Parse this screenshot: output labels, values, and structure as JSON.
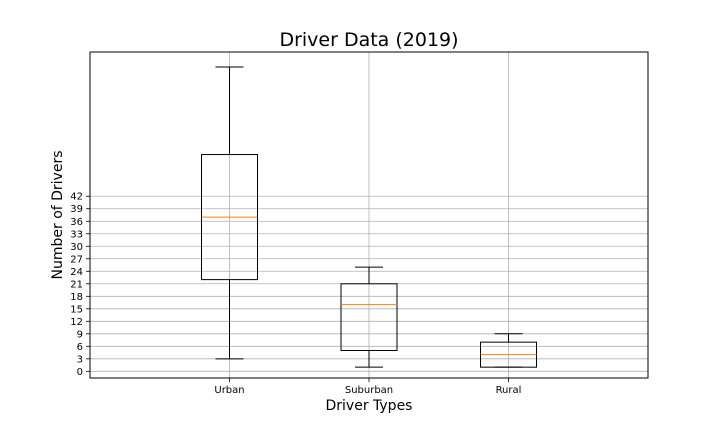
{
  "chart_data": {
    "type": "box",
    "title": "Driver Data (2019)",
    "xlabel": "Driver Types",
    "ylabel": "Number of Drivers",
    "categories": [
      "Urban",
      "Suburban",
      "Rural"
    ],
    "boxes": [
      {
        "name": "Urban",
        "min": 3,
        "q1": 22,
        "median": 37,
        "q3": 52,
        "max": 73
      },
      {
        "name": "Suburban",
        "min": 1,
        "q1": 5,
        "median": 16,
        "q3": 21,
        "max": 25
      },
      {
        "name": "Rural",
        "min": 1,
        "q1": 1,
        "median": 4,
        "q3": 7,
        "max": 9
      }
    ],
    "yticks": [
      0,
      3,
      6,
      9,
      12,
      15,
      18,
      21,
      24,
      27,
      30,
      33,
      36,
      39,
      42
    ],
    "ylim": [
      -1.6,
      76.6
    ],
    "grid": true,
    "median_color": "#ff7f0e",
    "box_color": "#000000",
    "grid_color": "#b0b0b0"
  }
}
